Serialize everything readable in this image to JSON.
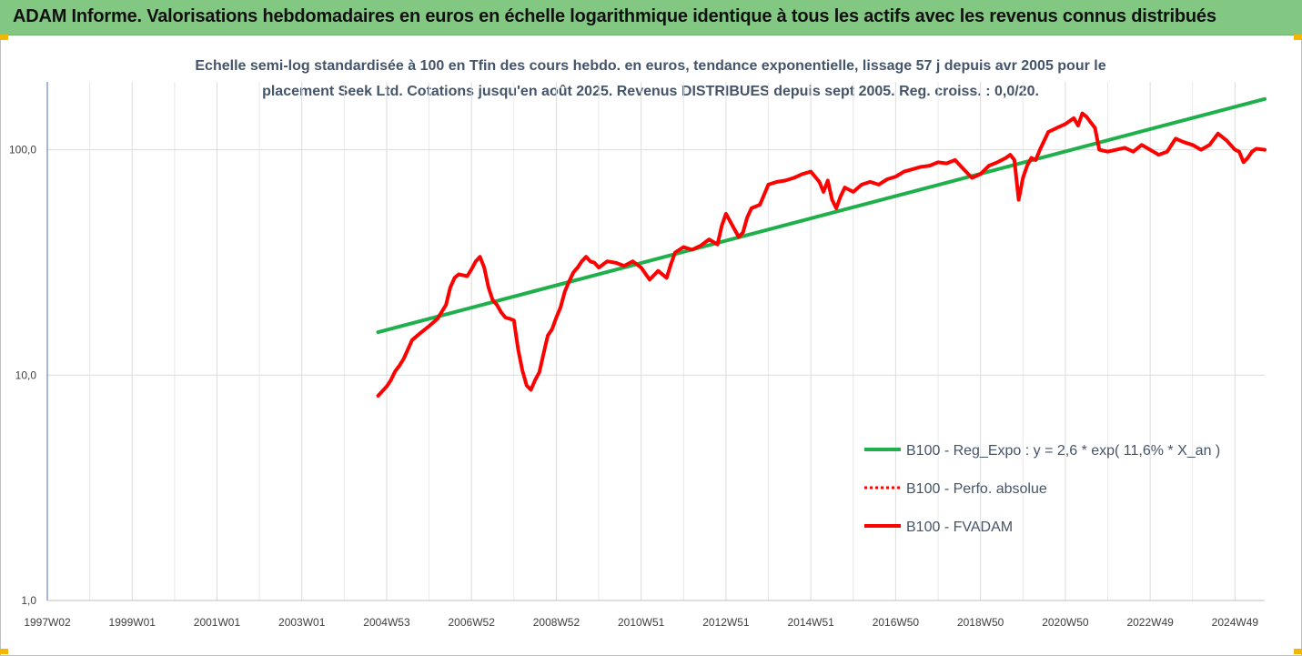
{
  "header": {
    "title": "ADAM Informe. Valorisations hebdomadaires en euros en échelle logarithmique identique à tous les actifs avec les revenus connus distribués"
  },
  "chart_data": {
    "type": "line",
    "title_line1": "Echelle semi-log standardisée à 100 en Tfin des cours hebdo. en euros, tendance exponentielle, lissage 57 j depuis avr 2005 pour le",
    "title_line2": "placement Seek Ltd. Cotations jusqu'en août 2025. Revenus DISTRIBUES depuis sept 2005. Reg. croiss. : 0,0/20.",
    "y_scale": "log",
    "ylim": [
      1,
      200
    ],
    "y_ticks": [
      {
        "value": 1,
        "label": "1,0"
      },
      {
        "value": 10,
        "label": "10,0"
      },
      {
        "value": 100,
        "label": "100,0"
      }
    ],
    "x_range": [
      1997.0,
      2025.7
    ],
    "x_ticks": [
      {
        "value": 1997.0,
        "label": "1997W02"
      },
      {
        "value": 1999.0,
        "label": "1999W01"
      },
      {
        "value": 2001.0,
        "label": "2001W01"
      },
      {
        "value": 2003.0,
        "label": "2003W01"
      },
      {
        "value": 2005.0,
        "label": "2004W53"
      },
      {
        "value": 2007.0,
        "label": "2006W52"
      },
      {
        "value": 2009.0,
        "label": "2008W52"
      },
      {
        "value": 2011.0,
        "label": "2010W51"
      },
      {
        "value": 2013.0,
        "label": "2012W51"
      },
      {
        "value": 2015.0,
        "label": "2014W51"
      },
      {
        "value": 2017.0,
        "label": "2016W50"
      },
      {
        "value": 2019.0,
        "label": "2018W50"
      },
      {
        "value": 2021.0,
        "label": "2020W50"
      },
      {
        "value": 2023.0,
        "label": "2022W49"
      },
      {
        "value": 2025.0,
        "label": "2024W49"
      }
    ],
    "grid": "vertical-and-horizontal",
    "legend_position": "bottom-right",
    "series": [
      {
        "name": "B100 - Reg_Expo : y = 2,6 * exp( 11,6% *  X_an )",
        "color": "#1fb04c",
        "style": "solid",
        "x": [
          2004.8,
          2025.7
        ],
        "y": [
          15.5,
          168
        ]
      },
      {
        "name": "B100 - Perfo. absolue",
        "color": "#ff0000",
        "style": "dotted",
        "x": [],
        "y": []
      },
      {
        "name": "B100 - FVADAM",
        "color": "#ff0000",
        "style": "solid",
        "x": [
          2004.8,
          2004.9,
          2005.0,
          2005.1,
          2005.2,
          2005.3,
          2005.4,
          2005.5,
          2005.6,
          2005.8,
          2006.0,
          2006.2,
          2006.4,
          2006.5,
          2006.6,
          2006.7,
          2006.9,
          2007.0,
          2007.1,
          2007.2,
          2007.3,
          2007.4,
          2007.5,
          2007.6,
          2007.7,
          2007.8,
          2007.9,
          2008.0,
          2008.1,
          2008.2,
          2008.3,
          2008.4,
          2008.5,
          2008.6,
          2008.7,
          2008.8,
          2008.9,
          2009.0,
          2009.1,
          2009.2,
          2009.3,
          2009.4,
          2009.5,
          2009.6,
          2009.7,
          2009.8,
          2009.9,
          2010.0,
          2010.2,
          2010.4,
          2010.6,
          2010.8,
          2011.0,
          2011.2,
          2011.4,
          2011.6,
          2011.7,
          2011.8,
          2012.0,
          2012.2,
          2012.4,
          2012.6,
          2012.8,
          2012.9,
          2013.0,
          2013.1,
          2013.3,
          2013.4,
          2013.5,
          2013.6,
          2013.8,
          2014.0,
          2014.2,
          2014.4,
          2014.6,
          2014.8,
          2015.0,
          2015.2,
          2015.3,
          2015.4,
          2015.5,
          2015.6,
          2015.7,
          2015.8,
          2016.0,
          2016.2,
          2016.4,
          2016.6,
          2016.8,
          2017.0,
          2017.2,
          2017.4,
          2017.6,
          2017.8,
          2018.0,
          2018.2,
          2018.4,
          2018.6,
          2018.8,
          2019.0,
          2019.2,
          2019.4,
          2019.6,
          2019.7,
          2019.8,
          2019.9,
          2020.0,
          2020.1,
          2020.2,
          2020.3,
          2020.4,
          2020.6,
          2020.8,
          2021.0,
          2021.2,
          2021.3,
          2021.4,
          2021.5,
          2021.6,
          2021.7,
          2021.8,
          2022.0,
          2022.2,
          2022.4,
          2022.6,
          2022.8,
          2023.0,
          2023.2,
          2023.4,
          2023.6,
          2023.8,
          2024.0,
          2024.2,
          2024.4,
          2024.6,
          2024.8,
          2025.0,
          2025.1,
          2025.2,
          2025.3,
          2025.4,
          2025.5,
          2025.7
        ],
        "y": [
          8.1,
          8.5,
          8.9,
          9.5,
          10.4,
          11.0,
          11.8,
          13.0,
          14.3,
          15.4,
          16.5,
          17.8,
          20.5,
          24.5,
          27.0,
          28.0,
          27.5,
          29.5,
          32.0,
          33.5,
          30.0,
          24.5,
          21.5,
          20.5,
          19.0,
          18.0,
          17.8,
          17.5,
          13.0,
          10.5,
          9.0,
          8.6,
          9.5,
          10.3,
          12.5,
          15.0,
          16.0,
          18.0,
          20.0,
          23.5,
          26.0,
          28.5,
          30.0,
          32.0,
          33.5,
          32.0,
          31.5,
          30.0,
          32.0,
          31.5,
          30.5,
          32.0,
          30.0,
          26.5,
          29.0,
          27.0,
          31.0,
          35.0,
          37.0,
          36.0,
          37.5,
          40.0,
          38.0,
          46.0,
          52.0,
          48.0,
          41.0,
          43.0,
          50.0,
          55.0,
          57.0,
          70.0,
          72.0,
          73.0,
          75.0,
          78.0,
          80.0,
          72.0,
          65.0,
          73.0,
          60.0,
          55.0,
          62.0,
          68.0,
          65.0,
          70.0,
          72.0,
          70.0,
          74.0,
          76.0,
          80.0,
          82.0,
          84.0,
          85.0,
          88.0,
          87.0,
          90.0,
          82.0,
          75.0,
          78.0,
          85.0,
          88.0,
          92.0,
          95.0,
          90.0,
          60.0,
          75.0,
          85.0,
          92.0,
          90.0,
          100.0,
          120.0,
          125.0,
          130.0,
          138.0,
          128.0,
          145.0,
          140.0,
          132.0,
          125.0,
          100.0,
          98.0,
          100.0,
          102.0,
          98.0,
          105.0,
          100.0,
          95.0,
          98.0,
          112.0,
          108.0,
          105.0,
          100.0,
          105.0,
          118.0,
          110.0,
          100.0,
          98.0,
          88.0,
          92.0,
          98.0,
          101.0,
          100.0
        ]
      }
    ]
  }
}
